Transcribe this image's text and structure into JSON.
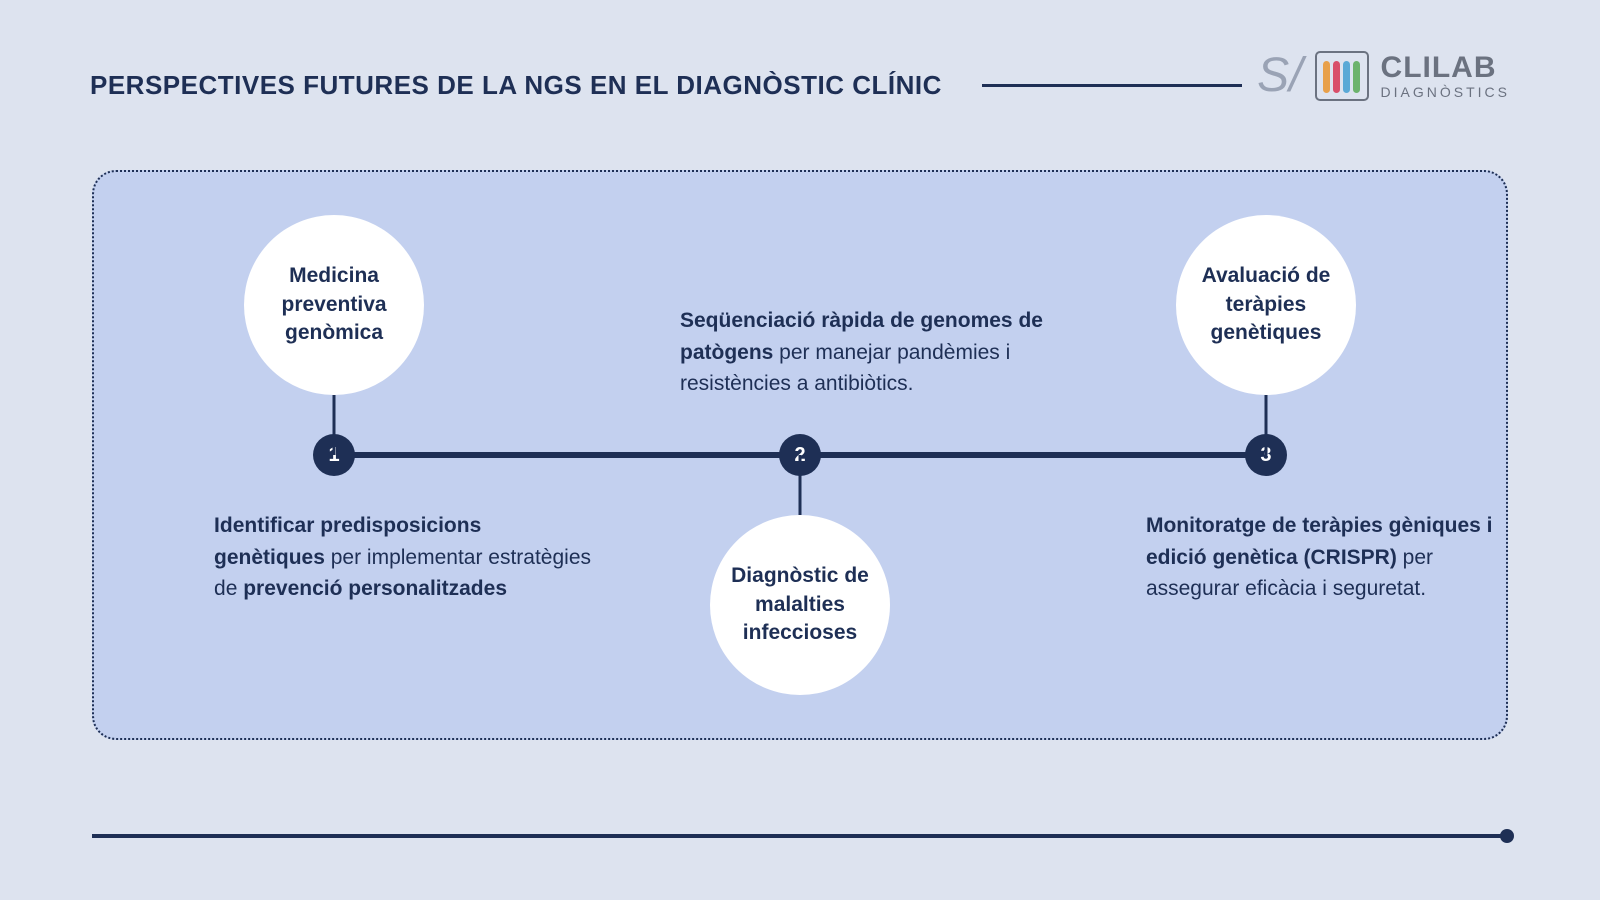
{
  "title": "PERSPECTIVES FUTURES DE LA NGS EN EL DIAGNÒSTIC CLÍNIC",
  "logo": {
    "prefix": "S/",
    "main": "CLILAB",
    "sub": "DIAGNÒSTICS",
    "tube_colors": [
      "#e8a04a",
      "#d94f6a",
      "#5aa9d6",
      "#6cb36c"
    ],
    "text_color": "#6b7280",
    "prefix_color": "#9aa3b5"
  },
  "colors": {
    "background": "#dde3ef",
    "panel_bg": "#c3d0ef",
    "accent": "#1e2f55",
    "circle_bg": "#ffffff"
  },
  "timeline": {
    "line_width": 6,
    "node_diameter": 42,
    "connector_length": 60,
    "circle_diameter": 180,
    "positions_pct": [
      17,
      50,
      83
    ],
    "nodes": [
      {
        "num": "1",
        "circle_pos": "above",
        "circle_text": "Medicina preventiva genòmica",
        "desc_pos": "below",
        "desc_html": "<b>Identificar predisposicions genètiques</b> per implementar estratègies de <b>prevenció personalitzades</b>"
      },
      {
        "num": "2",
        "circle_pos": "below",
        "circle_text": "Diagnòstic de malalties infeccioses",
        "desc_pos": "above",
        "desc_html": "<b>Seqüenciació ràpida de genomes de patògens</b> per manejar pandèmies i resistències a antibiòtics."
      },
      {
        "num": "3",
        "circle_pos": "above",
        "circle_text": "Avaluació de teràpies genètiques",
        "desc_pos": "below",
        "desc_html": "<b>Monitoratge de teràpies gèniques i edició genètica (CRISPR)</b> per assegurar eficàcia i seguretat."
      }
    ]
  }
}
